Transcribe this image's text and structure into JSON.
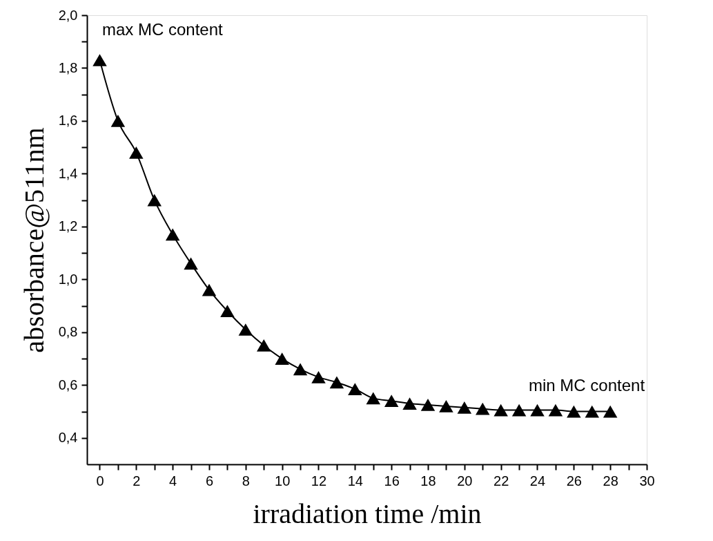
{
  "chart_data": {
    "type": "line",
    "xlabel": "irradiation time /min",
    "ylabel": "absorbance@511nm",
    "x": [
      0,
      1,
      2,
      3,
      4,
      5,
      6,
      7,
      8,
      9,
      10,
      11,
      12,
      13,
      14,
      15,
      16,
      17,
      18,
      19,
      20,
      21,
      22,
      23,
      24,
      25,
      26,
      27,
      28
    ],
    "series": [
      {
        "color": "#000000",
        "values": [
          1.83,
          1.6,
          1.48,
          1.3,
          1.17,
          1.06,
          0.96,
          0.88,
          0.81,
          0.75,
          0.7,
          0.66,
          0.63,
          0.61,
          0.585,
          0.55,
          0.54,
          0.53,
          0.525,
          0.52,
          0.515,
          0.51,
          0.505,
          0.505,
          0.505,
          0.505,
          0.5,
          0.5,
          0.5
        ]
      }
    ],
    "marker": "triangle",
    "line_style": "solid",
    "grid": false,
    "legend": false,
    "xlim": [
      -0.7,
      30
    ],
    "ylim": [
      0.3,
      2.0
    ],
    "xticks": [
      0,
      {
        "value": 1,
        "label": null
      },
      2,
      {
        "value": 3,
        "label": null
      },
      4,
      {
        "value": 5,
        "label": null
      },
      6,
      {
        "value": 7,
        "label": null
      },
      8,
      {
        "value": 9,
        "label": null
      },
      10,
      {
        "value": 11,
        "label": null
      },
      12,
      {
        "value": 13,
        "label": null
      },
      14,
      {
        "value": 15,
        "label": null
      },
      16,
      {
        "value": 17,
        "label": null
      },
      18,
      {
        "value": 19,
        "label": null
      },
      20,
      {
        "value": 21,
        "label": null
      },
      22,
      {
        "value": 23,
        "label": null
      },
      24,
      {
        "value": 25,
        "label": null
      },
      26,
      {
        "value": 27,
        "label": null
      },
      28,
      {
        "value": 29,
        "label": null
      },
      30
    ],
    "yticks": [
      {
        "value": 0.4,
        "label": "0,4"
      },
      {
        "value": 0.5,
        "label": null
      },
      {
        "value": 0.6,
        "label": "0,6"
      },
      {
        "value": 0.7,
        "label": null
      },
      {
        "value": 0.8,
        "label": "0,8"
      },
      {
        "value": 0.9,
        "label": null
      },
      {
        "value": 1.0,
        "label": "1,0"
      },
      {
        "value": 1.1,
        "label": null
      },
      {
        "value": 1.2,
        "label": "1,2"
      },
      {
        "value": 1.3,
        "label": null
      },
      {
        "value": 1.4,
        "label": "1,4"
      },
      {
        "value": 1.5,
        "label": null
      },
      {
        "value": 1.6,
        "label": "1,6"
      },
      {
        "value": 1.7,
        "label": null
      },
      {
        "value": 1.8,
        "label": "1,8"
      },
      {
        "value": 1.9,
        "label": null
      },
      {
        "value": 2.0,
        "label": "2,0"
      }
    ],
    "annotations": [
      "max MC content",
      "min MC content"
    ]
  }
}
